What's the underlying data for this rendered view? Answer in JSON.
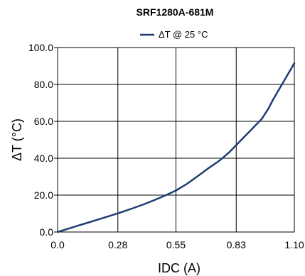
{
  "chart_data": {
    "type": "line",
    "title": "SRF1280A-681M",
    "xlabel": "IDC (A)",
    "ylabel": "ΔT (°C)",
    "xlim": [
      0.0,
      1.1
    ],
    "ylim": [
      0.0,
      100.0
    ],
    "x_ticks": [
      "0.0",
      "0.28",
      "0.55",
      "0.83",
      "1.10"
    ],
    "y_ticks": [
      "0.0",
      "20.0",
      "40.0",
      "60.0",
      "80.0",
      "100.0"
    ],
    "grid": true,
    "legend_position": "top-center",
    "series": [
      {
        "name": "ΔT @ 25 °C",
        "color": "#1f3c73",
        "x": [
          0.0,
          0.05,
          0.1,
          0.15,
          0.2,
          0.25,
          0.3,
          0.35,
          0.4,
          0.45,
          0.5,
          0.55,
          0.6,
          0.65,
          0.7,
          0.75,
          0.8,
          0.85,
          0.9,
          0.95,
          0.98,
          1.0,
          1.03,
          1.06,
          1.1
        ],
        "y": [
          0.0,
          1.8,
          3.6,
          5.4,
          7.2,
          9.0,
          10.9,
          12.9,
          15.0,
          17.3,
          19.8,
          22.5,
          26.0,
          30.2,
          34.5,
          38.5,
          43.5,
          49.5,
          55.5,
          61.5,
          67.0,
          71.5,
          77.5,
          83.5,
          91.5
        ]
      }
    ]
  }
}
